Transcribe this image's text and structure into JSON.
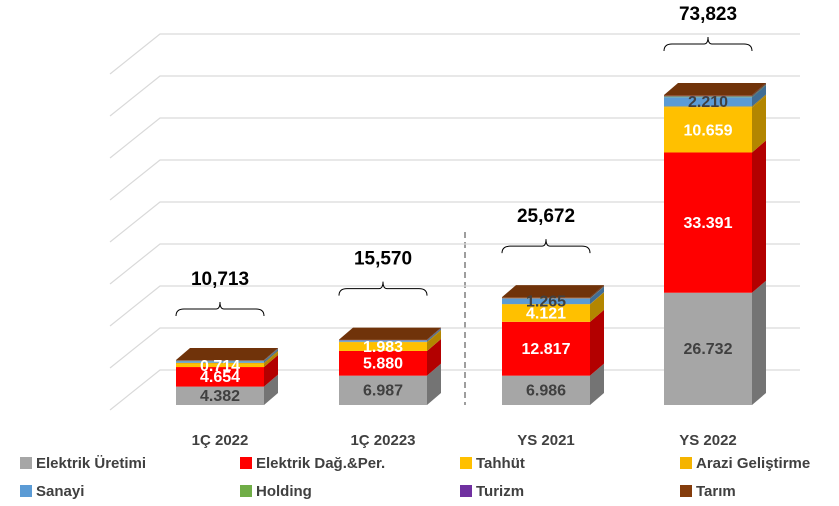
{
  "chart_data": {
    "type": "bar3d-stacked",
    "categories": [
      "1Ç 2022",
      "1Ç 20223",
      "YS 2021",
      "YS 2022"
    ],
    "series": [
      {
        "name": "Elektrik Üretimi",
        "color": "#a6a6a6",
        "values": [
          4.382,
          6.987,
          6.986,
          26.732
        ],
        "value_labels": [
          "4.382",
          "6.987",
          "6.986",
          "26.732"
        ]
      },
      {
        "name": "Elektrik Dağ.&Per.",
        "color": "#ff0000",
        "values": [
          4.654,
          5.88,
          12.817,
          33.391
        ],
        "value_labels": [
          "4.654",
          "5.880",
          "12.817",
          "33.391"
        ]
      },
      {
        "name": "Tahhüt",
        "color": "#ffc000",
        "values": [
          0.714,
          1.983,
          4.121,
          10.659
        ],
        "value_labels": [
          "0.714",
          "1.983",
          "4.121",
          "10.659"
        ]
      },
      {
        "name": "Arazi Geliştirme",
        "color": "#f5b400",
        "values": [
          0.3,
          0.2,
          0.1,
          0.3
        ]
      },
      {
        "name": "Sanayi",
        "color": "#5b9bd5",
        "values": [
          0.4,
          0.3,
          1.265,
          2.21
        ],
        "value_labels": [
          null,
          null,
          "1.265",
          "2.210"
        ]
      },
      {
        "name": "Holding",
        "color": "#70ad47",
        "values": [
          0.1,
          0.05,
          0.1,
          0.2
        ]
      },
      {
        "name": "Turizm",
        "color": "#7030a0",
        "values": [
          0.063,
          0.07,
          0.083,
          0.131
        ]
      },
      {
        "name": "Tarım",
        "color": "#843c0c",
        "values": [
          0.1,
          0.1,
          0.2,
          0.2
        ]
      }
    ],
    "totals": {
      "values": [
        10.713,
        15.57,
        25.672,
        73.823
      ],
      "value_labels": [
        "10,713",
        "15,570",
        "25,672",
        "73,823"
      ]
    },
    "ylim": [
      0,
      80
    ],
    "yticks": [
      0,
      10,
      20,
      30,
      40,
      50,
      60,
      70,
      80
    ],
    "grid": true
  }
}
